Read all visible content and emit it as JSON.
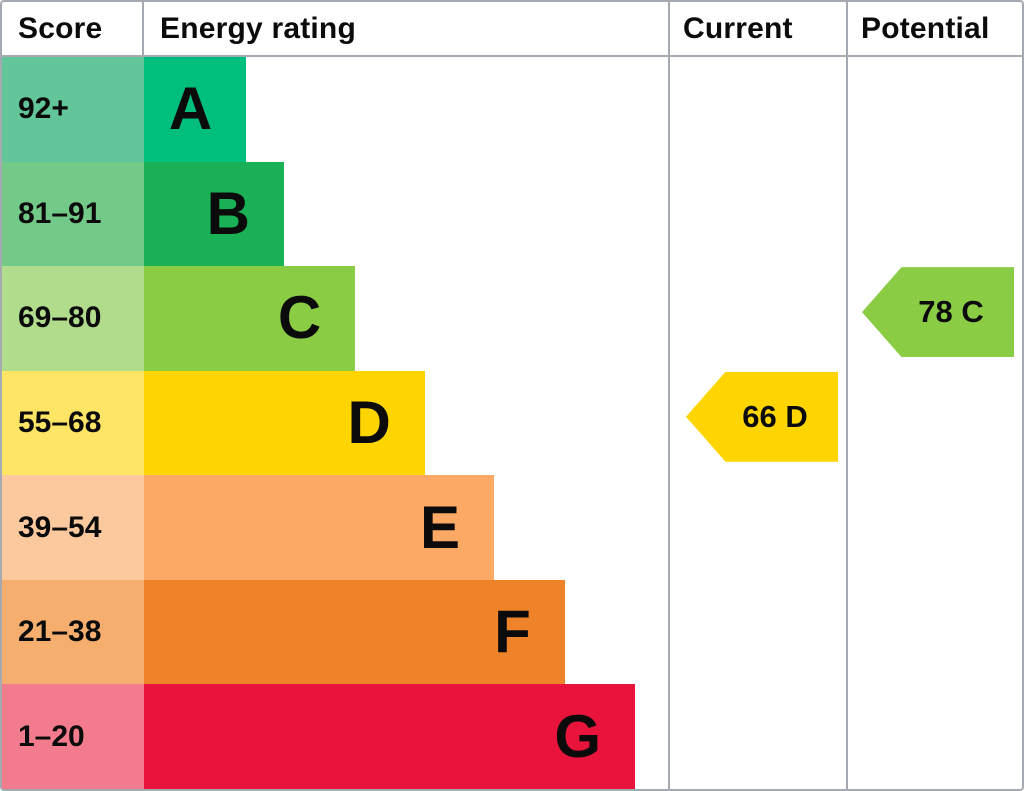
{
  "border_color": "#a5aab2",
  "header": {
    "score": "Score",
    "energy_rating": "Energy rating",
    "current": "Current",
    "potential": "Potential"
  },
  "bands": [
    {
      "score": "92+",
      "letter": "A",
      "color": "#00bf7d",
      "tint": "#63c69b",
      "width": "19.5%"
    },
    {
      "score": "81–91",
      "letter": "B",
      "color": "#1ab156",
      "tint": "#73c987",
      "width": "26.7%"
    },
    {
      "score": "69–80",
      "letter": "C",
      "color": "#8bcc45",
      "tint": "#b1dc8c",
      "width": "40.3%"
    },
    {
      "score": "55–68",
      "letter": "D",
      "color": "#ffd500",
      "tint": "#ffe566",
      "width": "53.6%"
    },
    {
      "score": "39–54",
      "letter": "E",
      "color": "#fba964",
      "tint": "#fcc99e",
      "width": "66.8%"
    },
    {
      "score": "21–38",
      "letter": "F",
      "color": "#ee8329",
      "tint": "#f5ae6e",
      "width": "80.3%"
    },
    {
      "score": "1–20",
      "letter": "G",
      "color": "#e9143b",
      "tint": "#f37b8e",
      "width": "93.7%"
    }
  ],
  "current": {
    "label": "66 D",
    "value": 66,
    "band": "D",
    "color": "#ffd500"
  },
  "potential": {
    "label": "78 C",
    "value": 78,
    "band": "C",
    "color": "#8bcc45"
  },
  "chart_data": {
    "type": "bar",
    "orientation": "horizontal",
    "columns": [
      "Score",
      "Energy rating",
      "Current",
      "Potential"
    ],
    "categories": [
      "A",
      "B",
      "C",
      "D",
      "E",
      "F",
      "G"
    ],
    "score_ranges": [
      "92+",
      "81–91",
      "69–80",
      "55–68",
      "39–54",
      "21–38",
      "1–20"
    ],
    "bar_length_pct": [
      19.5,
      26.7,
      40.3,
      53.6,
      66.8,
      80.3,
      93.7
    ],
    "band_colors": [
      "#00bf7d",
      "#1ab156",
      "#8bcc45",
      "#ffd500",
      "#fba964",
      "#ee8329",
      "#e9143b"
    ],
    "score_cell_colors": [
      "#63c69b",
      "#73c987",
      "#b1dc8c",
      "#ffe566",
      "#fcc99e",
      "#f5ae6e",
      "#f37b8e"
    ],
    "markers": [
      {
        "column": "Current",
        "value": 66,
        "band": "D",
        "label": "66 D",
        "color": "#ffd500",
        "row_index": 3
      },
      {
        "column": "Potential",
        "value": 78,
        "band": "C",
        "label": "78 C",
        "color": "#8bcc45",
        "row_index": 2
      }
    ],
    "grid": false,
    "legend_position": "none"
  }
}
